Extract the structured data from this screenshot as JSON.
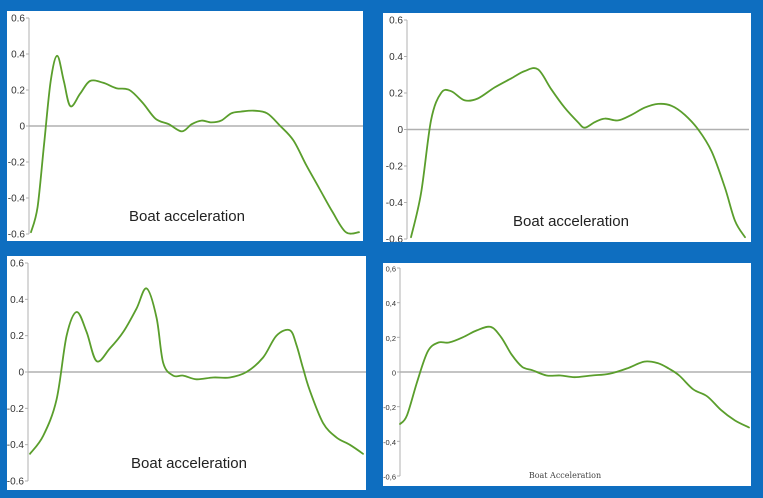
{
  "colors": {
    "line": "#5a9e2c",
    "axis": "#b0b0b0",
    "background": "#0e6ec0"
  },
  "chart_data": [
    {
      "type": "line",
      "caption": "Boat acceleration",
      "yticks": [
        "0.6",
        "0.4",
        "0.2",
        "0",
        "-0.2",
        "-0.4",
        "-0.6"
      ],
      "ylim": [
        -0.6,
        0.6
      ],
      "xlim": [
        0,
        1
      ],
      "series": [
        {
          "x": [
            0.0,
            0.02,
            0.04,
            0.06,
            0.08,
            0.1,
            0.12,
            0.15,
            0.18,
            0.22,
            0.26,
            0.3,
            0.34,
            0.38,
            0.42,
            0.46,
            0.49,
            0.52,
            0.55,
            0.58,
            0.61,
            0.64,
            0.68,
            0.72,
            0.76,
            0.8,
            0.84,
            0.88,
            0.92,
            0.96,
            1.0
          ],
          "y": [
            -0.59,
            -0.45,
            -0.1,
            0.25,
            0.39,
            0.25,
            0.11,
            0.18,
            0.25,
            0.24,
            0.21,
            0.2,
            0.13,
            0.04,
            0.01,
            -0.03,
            0.01,
            0.03,
            0.02,
            0.03,
            0.07,
            0.08,
            0.085,
            0.07,
            0.0,
            -0.08,
            -0.22,
            -0.35,
            -0.48,
            -0.59,
            -0.59
          ]
        }
      ]
    },
    {
      "type": "line",
      "caption": "Boat acceleration",
      "yticks": [
        "0.6",
        "0.4",
        "0.2",
        "0",
        "-0.2",
        "-0.4",
        "-0.6"
      ],
      "ylim": [
        -0.6,
        0.6
      ],
      "xlim": [
        0,
        1
      ],
      "series": [
        {
          "x": [
            0.0,
            0.03,
            0.06,
            0.09,
            0.12,
            0.16,
            0.2,
            0.25,
            0.3,
            0.34,
            0.38,
            0.42,
            0.46,
            0.5,
            0.52,
            0.55,
            0.58,
            0.62,
            0.66,
            0.7,
            0.74,
            0.78,
            0.82,
            0.86,
            0.9,
            0.94,
            0.97,
            1.0
          ],
          "y": [
            -0.59,
            -0.35,
            0.05,
            0.2,
            0.21,
            0.16,
            0.17,
            0.23,
            0.28,
            0.32,
            0.33,
            0.22,
            0.12,
            0.04,
            0.01,
            0.04,
            0.06,
            0.05,
            0.08,
            0.12,
            0.14,
            0.13,
            0.08,
            0.0,
            -0.12,
            -0.32,
            -0.5,
            -0.59
          ]
        }
      ]
    },
    {
      "type": "line",
      "caption": "Boat acceleration",
      "yticks": [
        "0.6",
        "0.4",
        "0.2",
        "0",
        "-0.2",
        "-0.4",
        "-0.6"
      ],
      "ylim": [
        -0.6,
        0.6
      ],
      "xlim": [
        0,
        1
      ],
      "series": [
        {
          "x": [
            0.0,
            0.04,
            0.08,
            0.11,
            0.14,
            0.17,
            0.2,
            0.24,
            0.28,
            0.32,
            0.35,
            0.38,
            0.4,
            0.43,
            0.46,
            0.5,
            0.55,
            0.6,
            0.65,
            0.7,
            0.74,
            0.78,
            0.8,
            0.82,
            0.84,
            0.88,
            0.92,
            0.96,
            1.0
          ],
          "y": [
            -0.45,
            -0.35,
            -0.15,
            0.2,
            0.33,
            0.22,
            0.06,
            0.13,
            0.22,
            0.35,
            0.46,
            0.3,
            0.05,
            -0.02,
            -0.02,
            -0.04,
            -0.03,
            -0.03,
            0.0,
            0.08,
            0.2,
            0.23,
            0.15,
            0.02,
            -0.1,
            -0.28,
            -0.36,
            -0.4,
            -0.45
          ]
        }
      ]
    },
    {
      "type": "line",
      "caption": "Boat Acceleration",
      "yticks": [
        "0,6",
        "0,4",
        "0,2",
        "0",
        "-0,2",
        "-0,4",
        "-0,6"
      ],
      "ylim": [
        -0.6,
        0.6
      ],
      "xlim": [
        0,
        1
      ],
      "series": [
        {
          "x": [
            0.0,
            0.02,
            0.05,
            0.08,
            0.11,
            0.14,
            0.18,
            0.22,
            0.26,
            0.29,
            0.32,
            0.35,
            0.38,
            0.42,
            0.46,
            0.5,
            0.55,
            0.6,
            0.65,
            0.7,
            0.74,
            0.77,
            0.8,
            0.84,
            0.88,
            0.92,
            0.96,
            1.0
          ],
          "y": [
            -0.3,
            -0.25,
            -0.05,
            0.12,
            0.17,
            0.17,
            0.2,
            0.24,
            0.26,
            0.2,
            0.1,
            0.03,
            0.01,
            -0.02,
            -0.02,
            -0.03,
            -0.02,
            -0.01,
            0.02,
            0.06,
            0.05,
            0.02,
            -0.02,
            -0.1,
            -0.14,
            -0.22,
            -0.28,
            -0.32
          ]
        }
      ]
    }
  ]
}
